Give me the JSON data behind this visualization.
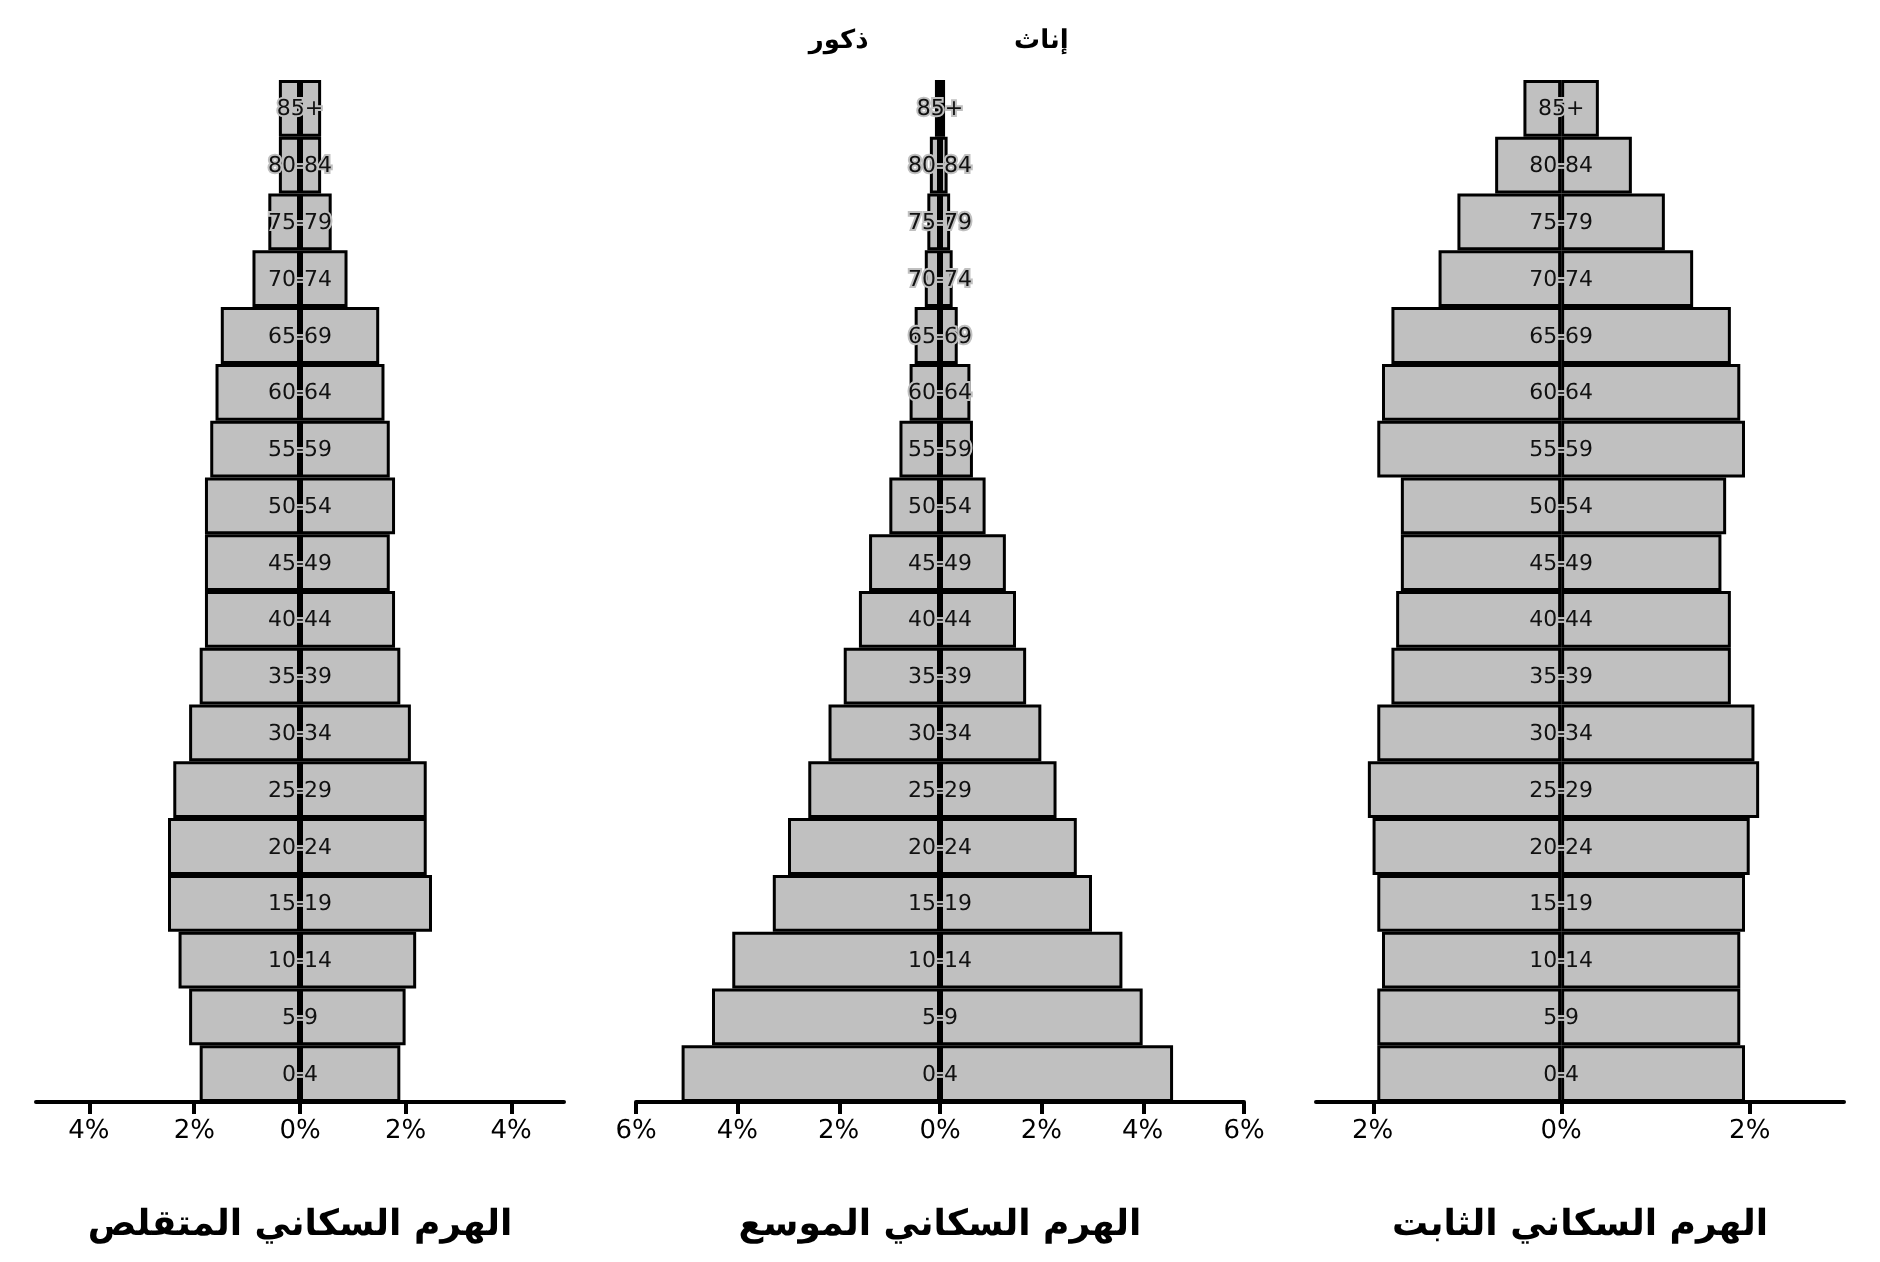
{
  "chart_data": [
    {
      "type": "bar",
      "orientation": "horizontal",
      "stacked": true,
      "xlabel": "الهرم السكاني المتقلص",
      "categories": [
        "85+",
        "80-84",
        "75-79",
        "70-74",
        "65-69",
        "60-64",
        "55-59",
        "50-54",
        "45-49",
        "40-44",
        "35-39",
        "30-34",
        "25-29",
        "20-24",
        "15-19",
        "10-14",
        "5-9",
        "0-4"
      ],
      "series": [
        {
          "color": "#c0c0c0",
          "values": [
            -0.4,
            -0.4,
            -0.6,
            -0.9,
            -1.5,
            -1.6,
            -1.7,
            -1.8,
            -1.8,
            -1.8,
            -1.9,
            -2.1,
            -2.4,
            -2.5,
            -2.5,
            -2.3,
            -2.1,
            -1.9
          ]
        },
        {
          "color": "#c0c0c0",
          "values": [
            0.4,
            0.4,
            0.6,
            0.9,
            1.5,
            1.6,
            1.7,
            1.8,
            1.7,
            1.8,
            1.9,
            2.1,
            2.4,
            2.4,
            2.5,
            2.2,
            2.0,
            1.9
          ]
        }
      ],
      "xlim": [
        -5,
        5
      ],
      "xticks": [
        {
          "value": -4,
          "label": "4%"
        },
        {
          "value": -2,
          "label": "2%"
        },
        {
          "value": 0,
          "label": "0%"
        },
        {
          "value": 2,
          "label": "2%"
        },
        {
          "value": 4,
          "label": "4%"
        }
      ],
      "grid": false,
      "legend": false
    },
    {
      "type": "bar",
      "orientation": "horizontal",
      "stacked": true,
      "xlabel": "الهرم السكاني الموسع",
      "categories": [
        "85+",
        "80-84",
        "75-79",
        "70-74",
        "65-69",
        "60-64",
        "55-59",
        "50-54",
        "45-49",
        "40-44",
        "35-39",
        "30-34",
        "25-29",
        "20-24",
        "15-19",
        "10-14",
        "5-9",
        "0-4"
      ],
      "series": [
        {
          "name": "ذكور",
          "color": "#c0c0c0",
          "values": [
            -0.1,
            -0.2,
            -0.25,
            -0.3,
            -0.5,
            -0.6,
            -0.8,
            -1.0,
            -1.4,
            -1.6,
            -1.9,
            -2.2,
            -2.6,
            -3.0,
            -3.3,
            -4.1,
            -4.5,
            -5.1
          ]
        },
        {
          "name": "إناث",
          "color": "#c0c0c0",
          "values": [
            0.1,
            0.15,
            0.2,
            0.25,
            0.35,
            0.6,
            0.65,
            0.9,
            1.3,
            1.5,
            1.7,
            2.0,
            2.3,
            2.7,
            3.0,
            3.6,
            4.0,
            4.6
          ]
        }
      ],
      "xlim": [
        -6,
        6
      ],
      "xticks": [
        {
          "value": -6,
          "label": "6%"
        },
        {
          "value": -4,
          "label": "4%"
        },
        {
          "value": -2,
          "label": "2%"
        },
        {
          "value": 0,
          "label": "0%"
        },
        {
          "value": 2,
          "label": "2%"
        },
        {
          "value": 4,
          "label": "4%"
        },
        {
          "value": 6,
          "label": "6%"
        }
      ],
      "grid": false,
      "legend": "top"
    },
    {
      "type": "bar",
      "orientation": "horizontal",
      "stacked": true,
      "xlabel": "الهرم السكاني الثابت",
      "categories": [
        "85+",
        "80-84",
        "75-79",
        "70-74",
        "65-69",
        "60-64",
        "55-59",
        "50-54",
        "45-49",
        "40-44",
        "35-39",
        "30-34",
        "25-29",
        "20-24",
        "15-19",
        "10-14",
        "5-9",
        "0-4"
      ],
      "series": [
        {
          "color": "#c0c0c0",
          "values": [
            -0.4,
            -0.7,
            -1.1,
            -1.3,
            -1.8,
            -1.9,
            -1.95,
            -1.7,
            -1.7,
            -1.75,
            -1.8,
            -1.95,
            -2.05,
            -2.0,
            -1.95,
            -1.9,
            -1.95,
            -1.95
          ]
        },
        {
          "color": "#c0c0c0",
          "values": [
            0.4,
            0.75,
            1.1,
            1.4,
            1.8,
            1.9,
            1.95,
            1.75,
            1.7,
            1.8,
            1.8,
            2.05,
            2.1,
            2.0,
            1.95,
            1.9,
            1.9,
            1.95
          ]
        }
      ],
      "xlim": [
        -2.6,
        3
      ],
      "xticks": [
        {
          "value": -2,
          "label": "2%"
        },
        {
          "value": 0,
          "label": "0%"
        },
        {
          "value": 2,
          "label": "2%"
        }
      ],
      "grid": false,
      "legend": false
    }
  ]
}
